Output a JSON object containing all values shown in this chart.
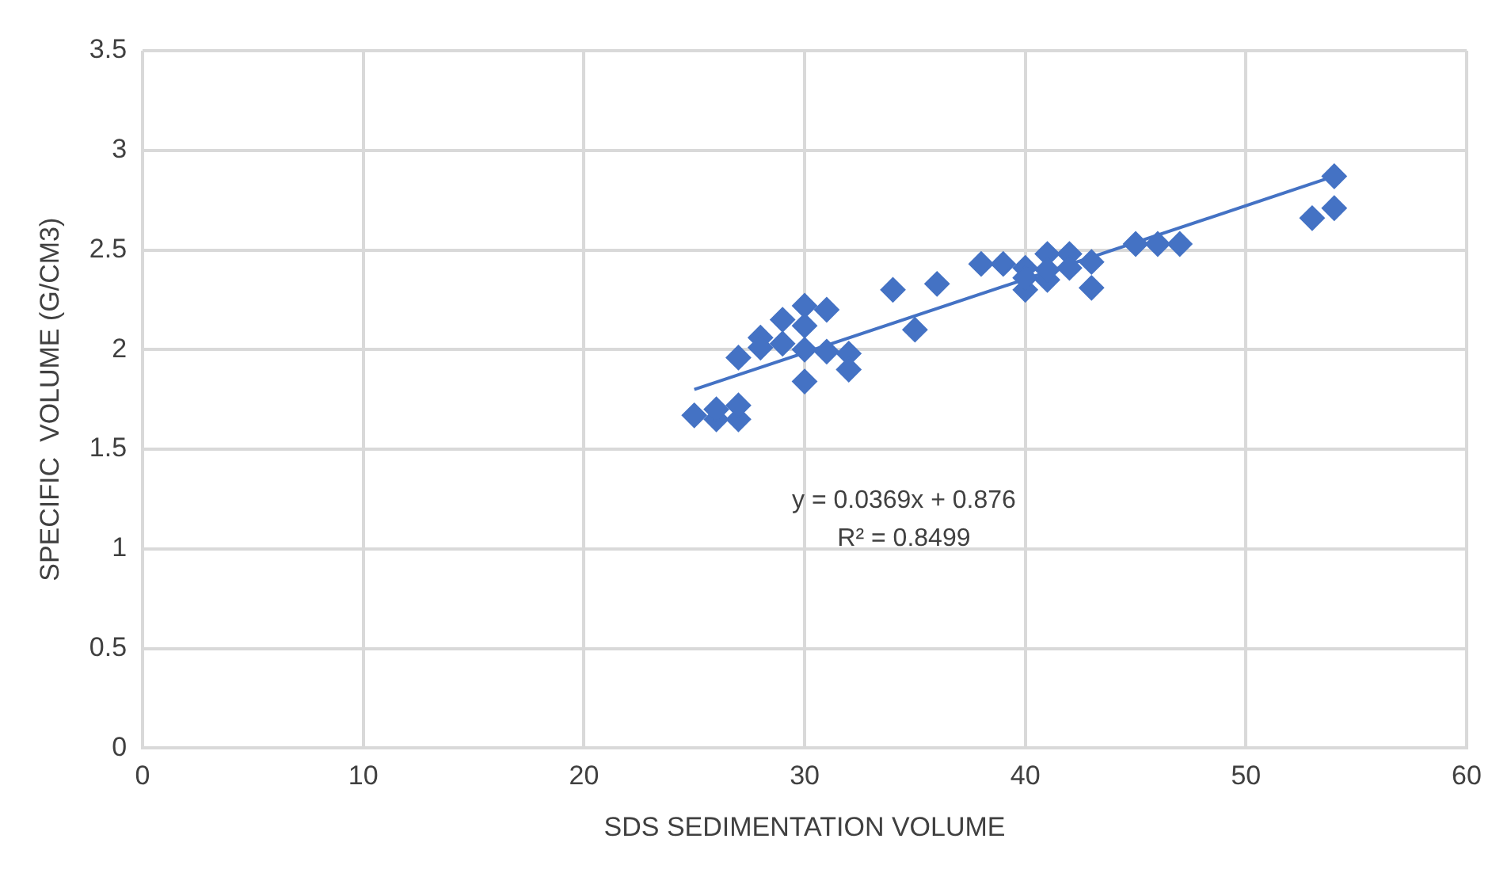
{
  "chart_data": {
    "type": "scatter",
    "xlabel": "SDS SEDIMENTATION VOLUME",
    "ylabel": "SPECIFIC  VOLUME (G/CM3)",
    "xlim": [
      0,
      60
    ],
    "xticks": [
      0,
      10,
      20,
      30,
      40,
      50,
      60
    ],
    "ylim": [
      0,
      3.5
    ],
    "yticks": [
      0,
      0.5,
      1,
      1.5,
      2,
      2.5,
      3,
      3.5
    ],
    "grid": true,
    "legend": false,
    "marker": "diamond",
    "annotations": [
      "y = 0.0369x + 0.876",
      "R² = 0.8499"
    ],
    "series": [
      {
        "type": "scatter",
        "color": "#4472c4",
        "x": [
          25,
          26,
          26,
          27,
          27,
          27,
          28,
          28,
          29,
          29,
          30,
          30,
          30,
          30,
          31,
          31,
          32,
          32,
          34,
          35,
          36,
          38,
          39,
          40,
          40,
          40,
          41,
          41,
          41,
          42,
          42,
          43,
          43,
          45,
          46,
          47,
          53,
          54,
          54
        ],
        "values": [
          1.67,
          1.65,
          1.7,
          1.65,
          1.72,
          1.96,
          2.06,
          2.01,
          2.15,
          2.03,
          2.22,
          2.12,
          2.0,
          1.84,
          2.2,
          1.99,
          1.98,
          1.9,
          2.3,
          2.1,
          2.33,
          2.43,
          2.43,
          2.41,
          2.3,
          2.36,
          2.48,
          2.35,
          2.4,
          2.48,
          2.41,
          2.44,
          2.31,
          2.53,
          2.53,
          2.53,
          2.66,
          2.71,
          2.87
        ]
      },
      {
        "type": "line",
        "color": "#4472c4",
        "marker": "none",
        "x": [
          25,
          54
        ],
        "values": [
          1.8,
          2.87
        ]
      }
    ]
  }
}
